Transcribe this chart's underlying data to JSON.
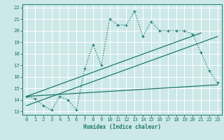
{
  "bg_color": "#cde8e8",
  "grid_color": "#aed4d4",
  "line_color": "#1a7a6a",
  "xlim": [
    -0.5,
    23.5
  ],
  "ylim": [
    12.7,
    22.3
  ],
  "xlabel": "Humidex (Indice chaleur)",
  "xticks": [
    0,
    1,
    2,
    3,
    4,
    5,
    6,
    7,
    8,
    9,
    10,
    11,
    12,
    13,
    14,
    15,
    16,
    17,
    18,
    19,
    20,
    21,
    22,
    23
  ],
  "yticks": [
    13,
    14,
    15,
    16,
    17,
    18,
    19,
    20,
    21,
    22
  ],
  "dotted_x": [
    0,
    1,
    2,
    3,
    4,
    5,
    6,
    7,
    8,
    9,
    10,
    11,
    12,
    13,
    14,
    15,
    16,
    17,
    18,
    19,
    20,
    21,
    22,
    23
  ],
  "dotted_y": [
    14.3,
    14.1,
    13.5,
    13.1,
    14.3,
    14.0,
    13.1,
    16.7,
    18.8,
    17.0,
    21.0,
    20.5,
    20.5,
    21.7,
    19.5,
    20.8,
    20.0,
    20.0,
    20.0,
    20.0,
    19.7,
    18.1,
    16.5,
    15.5
  ],
  "line1_x": [
    0,
    21
  ],
  "line1_y": [
    14.3,
    19.8
  ],
  "line2_x": [
    0,
    23
  ],
  "line2_y": [
    14.3,
    15.3
  ],
  "line3_x": [
    0,
    23
  ],
  "line3_y": [
    13.5,
    19.5
  ]
}
